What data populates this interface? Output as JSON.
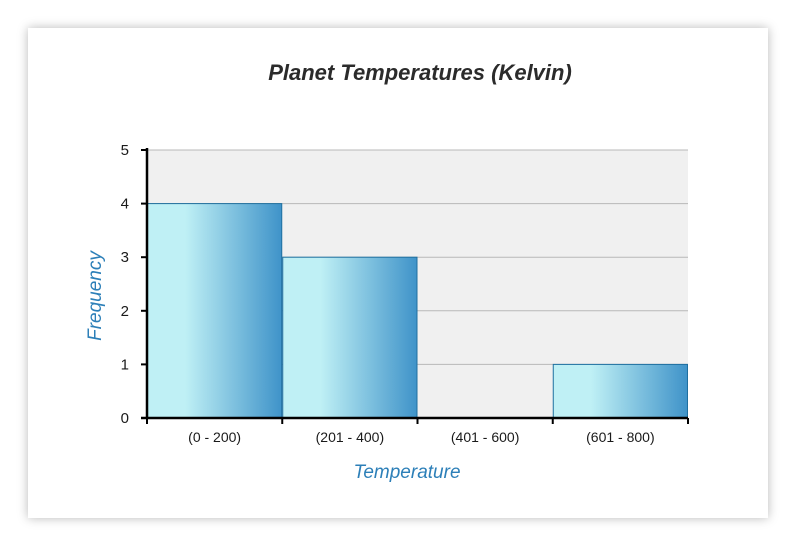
{
  "chart_data": {
    "type": "bar",
    "title": "Planet Temperatures (Kelvin)",
    "xlabel": "Temperature",
    "ylabel": "Frequency",
    "categories": [
      "(0 - 200)",
      "(201 - 400)",
      "(401 - 600)",
      "(601 - 800)"
    ],
    "values": [
      4,
      3,
      0,
      1
    ],
    "ylim": [
      0,
      5
    ],
    "yticks": [
      "0",
      "1",
      "2",
      "3",
      "4",
      "5"
    ],
    "grid": true,
    "legend": "none"
  },
  "colors": {
    "bar_light": "#bff0f5",
    "bar_dark": "#3f93c9",
    "bar_edge": "#1f6f9f",
    "plot_background": "#f0f0f0",
    "axis_label": "#2c7fb8",
    "title": "#2b2b2b"
  }
}
